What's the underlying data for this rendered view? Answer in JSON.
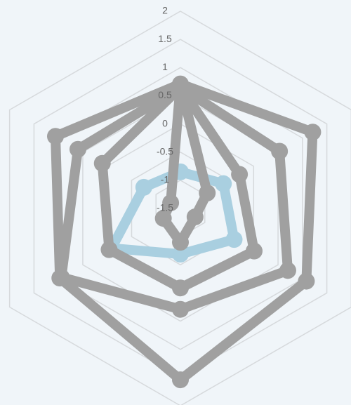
{
  "chart_data": {
    "type": "radar",
    "ylim": [
      -1.5,
      2
    ],
    "yticks": [
      -1.5,
      -1,
      -0.5,
      0,
      0.5,
      1,
      1.5,
      2
    ],
    "grid": true,
    "series": [
      {
        "color": "#a9cfe0",
        "values": [
          -0.85,
          -0.62,
          -0.4,
          -0.69,
          -0.09,
          -0.75
        ]
      },
      {
        "color": "#a0a0a0",
        "values": [
          0.71,
          1.21,
          1.08,
          1.54,
          0.97,
          1.06
        ]
      },
      {
        "color": "#a0a0a0",
        "values": [
          0.65,
          0.53,
          0.7,
          0.29,
          0.94,
          0.6
        ]
      },
      {
        "color": "#a0a0a0",
        "values": [
          0.65,
          -0.29,
          0.01,
          -0.09,
          -0.04,
          0.1
        ]
      },
      {
        "color": "#a0a0a0",
        "values": [
          0.7,
          -0.95,
          -1.2,
          -0.9,
          -1.15,
          -1.3
        ]
      }
    ]
  }
}
